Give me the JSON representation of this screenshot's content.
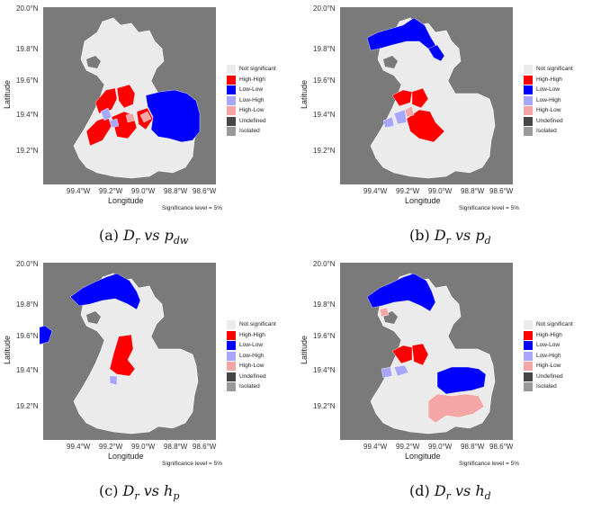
{
  "axes": {
    "xlabel": "Longitude",
    "ylabel": "Latitude",
    "lat_ticks": [
      "20.0°N",
      "19.8°N",
      "19.6°N",
      "19.4°N",
      "19.2°N"
    ],
    "lon_ticks": [
      "99.4°W",
      "99.2°W",
      "99.0°W",
      "98.8°W",
      "98.6°W"
    ]
  },
  "legend": {
    "items": [
      {
        "label": "Not significant",
        "color": "#ebebeb"
      },
      {
        "label": "High-High",
        "color": "#ff0000"
      },
      {
        "label": "Low-Low",
        "color": "#0000ff"
      },
      {
        "label": "Low-High",
        "color": "#a7a7ff"
      },
      {
        "label": "High-Low",
        "color": "#f4a6a6"
      },
      {
        "label": "Undefined",
        "color": "#464646"
      },
      {
        "label": "Isolated",
        "color": "#999999"
      }
    ]
  },
  "significance_note": "Significance level = 5%",
  "panels": [
    {
      "id": "a",
      "caption_prefix": "(a) ",
      "caption_main": "D",
      "caption_sub": "r",
      "caption_vs": " vs ",
      "caption_var": "p",
      "caption_var_sub": "dw"
    },
    {
      "id": "b",
      "caption_prefix": "(b) ",
      "caption_main": "D",
      "caption_sub": "r",
      "caption_vs": " vs ",
      "caption_var": "p",
      "caption_var_sub": "d"
    },
    {
      "id": "c",
      "caption_prefix": "(c) ",
      "caption_main": "D",
      "caption_sub": "r",
      "caption_vs": " vs  ",
      "caption_var": "h",
      "caption_var_sub": "p"
    },
    {
      "id": "d",
      "caption_prefix": "(d) ",
      "caption_main": "D",
      "caption_sub": "r",
      "caption_vs": " vs ",
      "caption_var": "h",
      "caption_var_sub": "d"
    }
  ]
}
